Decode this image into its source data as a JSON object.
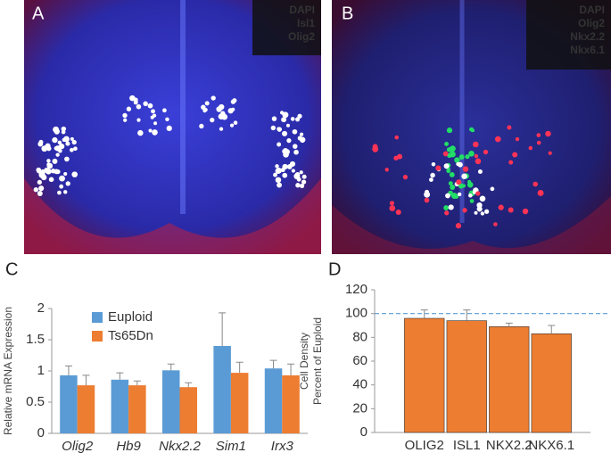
{
  "panels": [
    {
      "label": "A",
      "channels": [
        {
          "name": "DAPI",
          "color": "#4a6cff"
        },
        {
          "name": "Isl1",
          "color": "#ffffff"
        },
        {
          "name": "Olig2",
          "color": "#ff2a2a"
        }
      ]
    },
    {
      "label": "B",
      "channels": [
        {
          "name": "DAPI",
          "color": "#4a6cff"
        },
        {
          "name": "Olig2",
          "color": "#ff2a2a"
        },
        {
          "name": "Nkx2.2",
          "color": "#ffffff"
        },
        {
          "name": "Nkx6.1",
          "color": "#22dd66"
        }
      ]
    },
    {
      "label": "C"
    },
    {
      "label": "D"
    }
  ],
  "chart_data": [
    {
      "type": "bar",
      "ylabel": "Relative mRNA Expression",
      "categories": [
        "Olig2",
        "Hb9",
        "Nkx2.2",
        "Sim1",
        "Irx3"
      ],
      "series": [
        {
          "name": "Euploid",
          "color": "#5b9bd5",
          "values": [
            0.93,
            0.86,
            1.01,
            1.4,
            1.04
          ],
          "errors": [
            0.15,
            0.11,
            0.1,
            0.53,
            0.13
          ]
        },
        {
          "name": "Ts65Dn",
          "color": "#ed7d31",
          "values": [
            0.77,
            0.77,
            0.74,
            0.97,
            0.93
          ],
          "errors": [
            0.16,
            0.07,
            0.07,
            0.17,
            0.18
          ]
        }
      ],
      "ylim": [
        0,
        2
      ],
      "yticks": [
        0,
        0.5,
        1,
        1.5,
        2
      ]
    },
    {
      "type": "bar",
      "ylabel": [
        "Cell Density",
        "Percent of Euploid"
      ],
      "categories": [
        "OLIG2",
        "ISL1",
        "NKX2.2",
        "NKX6.1"
      ],
      "series": [
        {
          "color": "#ed7d31",
          "values": [
            96,
            94,
            89,
            83
          ],
          "errors": [
            7,
            9,
            3,
            7
          ]
        }
      ],
      "reference_line": 100,
      "reference_color": "#5b9bd5",
      "ylim": [
        0,
        120
      ],
      "yticks": [
        0,
        20,
        40,
        60,
        80,
        100,
        120
      ]
    }
  ]
}
